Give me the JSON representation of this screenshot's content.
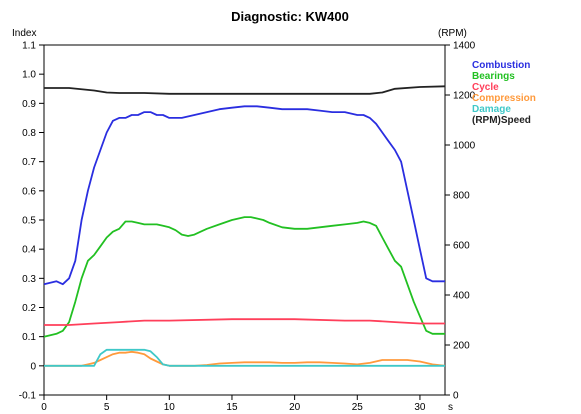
{
  "chart_data": {
    "type": "line",
    "title": "Diagnostic:  KW400",
    "ylabel": "Index",
    "y2label": "(RPM)",
    "xunit": "s",
    "xlim": [
      0,
      32
    ],
    "ylim": [
      -0.1,
      1.1
    ],
    "y2lim": [
      0,
      1400
    ],
    "x_ticks": [
      0,
      5,
      10,
      15,
      20,
      25,
      30
    ],
    "y_ticks": [
      -0.1,
      0,
      0.1,
      0.2,
      0.3,
      0.4,
      0.5,
      0.6,
      0.7,
      0.8,
      0.9,
      1.0,
      1.1
    ],
    "y_tick_labels": [
      "-0.1",
      "0",
      "0.1",
      "0.2",
      "0.3",
      "0.4",
      "0.5",
      "0.6",
      "0.7",
      "0.8",
      "0.9",
      "1.0",
      "1.1"
    ],
    "y2_ticks": [
      0,
      200,
      400,
      600,
      800,
      1000,
      1200,
      1400
    ],
    "grid": false,
    "legend_position": "right",
    "series": [
      {
        "name": "Combustion",
        "axis": "left",
        "color": "#2a2ee0",
        "x": [
          0,
          1,
          1.5,
          2,
          2.5,
          3,
          3.5,
          4,
          4.5,
          5,
          5.5,
          6,
          6.5,
          7,
          7.5,
          8,
          8.5,
          9,
          9.5,
          10,
          10.5,
          11,
          12,
          13,
          14,
          15,
          16,
          17,
          18,
          19,
          20,
          21,
          22,
          23,
          24,
          25,
          25.5,
          26,
          26.5,
          27,
          27.5,
          28,
          28.5,
          29,
          29.5,
          30,
          30.5,
          31,
          32
        ],
        "y": [
          0.28,
          0.29,
          0.28,
          0.3,
          0.36,
          0.5,
          0.6,
          0.68,
          0.74,
          0.8,
          0.84,
          0.85,
          0.85,
          0.86,
          0.86,
          0.87,
          0.87,
          0.86,
          0.86,
          0.85,
          0.85,
          0.85,
          0.86,
          0.87,
          0.88,
          0.885,
          0.89,
          0.89,
          0.885,
          0.88,
          0.88,
          0.88,
          0.875,
          0.87,
          0.87,
          0.86,
          0.86,
          0.85,
          0.83,
          0.8,
          0.77,
          0.74,
          0.7,
          0.6,
          0.5,
          0.4,
          0.3,
          0.29,
          0.29
        ]
      },
      {
        "name": "Bearings",
        "axis": "left",
        "color": "#22c022",
        "x": [
          0,
          1,
          1.5,
          2,
          2.5,
          3,
          3.5,
          4,
          4.5,
          5,
          5.5,
          6,
          6.5,
          7,
          7.5,
          8,
          8.5,
          9,
          9.5,
          10,
          10.5,
          11,
          11.5,
          12,
          12.5,
          13,
          14,
          15,
          16,
          16.5,
          17,
          17.5,
          18,
          19,
          20,
          21,
          22,
          23,
          24,
          25,
          25.5,
          26,
          26.5,
          27,
          27.5,
          28,
          28.5,
          29,
          29.5,
          30,
          30.5,
          31,
          32
        ],
        "y": [
          0.1,
          0.11,
          0.12,
          0.15,
          0.22,
          0.3,
          0.36,
          0.38,
          0.41,
          0.44,
          0.46,
          0.47,
          0.495,
          0.495,
          0.49,
          0.485,
          0.485,
          0.485,
          0.48,
          0.475,
          0.465,
          0.45,
          0.445,
          0.45,
          0.46,
          0.47,
          0.485,
          0.5,
          0.51,
          0.51,
          0.505,
          0.5,
          0.49,
          0.475,
          0.47,
          0.47,
          0.475,
          0.48,
          0.485,
          0.49,
          0.495,
          0.49,
          0.48,
          0.44,
          0.4,
          0.36,
          0.34,
          0.28,
          0.22,
          0.17,
          0.12,
          0.11,
          0.11
        ]
      },
      {
        "name": "Cycle",
        "axis": "left",
        "color": "#ff3f5a",
        "x": [
          0,
          2,
          4,
          6,
          8,
          10,
          15,
          20,
          24,
          26,
          28,
          30,
          32
        ],
        "y": [
          0.14,
          0.14,
          0.145,
          0.15,
          0.155,
          0.155,
          0.16,
          0.16,
          0.155,
          0.155,
          0.15,
          0.145,
          0.145
        ]
      },
      {
        "name": "Compression",
        "axis": "left",
        "color": "#ff9a3c",
        "x": [
          0,
          3,
          3.5,
          4,
          4.5,
          5,
          5.5,
          6,
          6.5,
          7,
          7.5,
          8,
          8.5,
          9,
          9.5,
          10,
          11,
          12,
          13,
          14,
          15,
          16,
          17,
          18,
          19,
          20,
          21,
          22,
          23,
          24,
          25,
          26,
          27,
          28,
          29,
          30,
          31,
          32
        ],
        "y": [
          0,
          0,
          0.005,
          0.01,
          0.02,
          0.03,
          0.04,
          0.045,
          0.045,
          0.048,
          0.045,
          0.04,
          0.025,
          0.015,
          0.005,
          0,
          0,
          0,
          0.003,
          0.008,
          0.01,
          0.012,
          0.012,
          0.012,
          0.01,
          0.01,
          0.012,
          0.012,
          0.01,
          0.008,
          0.005,
          0.01,
          0.02,
          0.02,
          0.02,
          0.015,
          0.005,
          0
        ]
      },
      {
        "name": "Damage",
        "axis": "left",
        "color": "#3fc8c8",
        "x": [
          0,
          4,
          4.5,
          5,
          6,
          7,
          8,
          8.5,
          9,
          9.5,
          10,
          32
        ],
        "y": [
          0,
          0,
          0.04,
          0.055,
          0.055,
          0.055,
          0.055,
          0.05,
          0.03,
          0.005,
          0,
          0
        ]
      },
      {
        "name": "(RPM)Speed",
        "axis": "right",
        "color": "#222222",
        "x": [
          0,
          2,
          4,
          5,
          6,
          8,
          10,
          12,
          14,
          16,
          18,
          20,
          22,
          24,
          26,
          27,
          28,
          30,
          32
        ],
        "y": [
          1228,
          1228,
          1218,
          1210,
          1208,
          1208,
          1205,
          1205,
          1205,
          1205,
          1205,
          1205,
          1205,
          1205,
          1205,
          1210,
          1225,
          1232,
          1235
        ]
      }
    ]
  }
}
